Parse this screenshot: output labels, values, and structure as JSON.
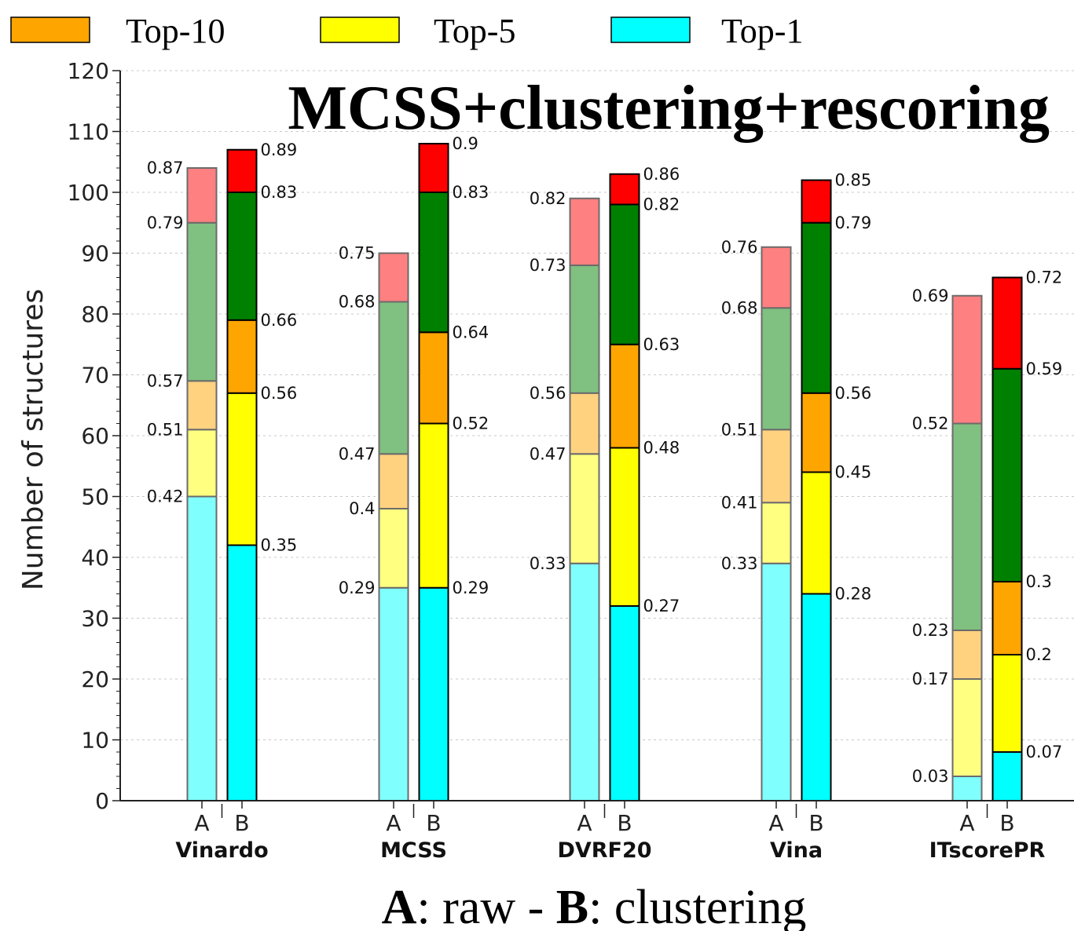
{
  "chart_data": {
    "type": "bar",
    "title": "MCSS+clustering+rescoring",
    "ylabel": "Number of structures",
    "xlabel": "",
    "ylim": [
      0,
      120
    ],
    "yticks": [
      0,
      10,
      20,
      30,
      40,
      50,
      60,
      70,
      80,
      90,
      100,
      110,
      120
    ],
    "grid": true,
    "stacked": true,
    "legend": {
      "placement": "top",
      "entries": [
        {
          "name": "Top-10",
          "color": "#ffa500"
        },
        {
          "name": "Top-5",
          "color": "#ffff00"
        },
        {
          "name": "Top-1",
          "color": "#00ffff"
        }
      ]
    },
    "footer": {
      "a_key": "A",
      "a_text": ": raw - ",
      "b_key": "B",
      "b_text": ": clustering"
    },
    "categories": [
      "Vinardo",
      "MCSS",
      "DVRF20",
      "Vina",
      "ITscorePR"
    ],
    "subcategories": [
      "A",
      "B"
    ],
    "segment_colors": {
      "A": {
        "top1": "#80ffff",
        "top5": "#ffff80",
        "top10": "#ffd280",
        "top50": "#80c080",
        "topall": "#ff8080"
      },
      "B": {
        "top1": "#00ffff",
        "top5": "#ffff00",
        "top10": "#ffa500",
        "top50": "#008000",
        "topall": "#ff0000"
      }
    },
    "groups": [
      {
        "category": "Vinardo",
        "A": {
          "tops": [
            50,
            61,
            69,
            95,
            104
          ],
          "labels": [
            "0.42",
            "0.51",
            "0.57",
            "0.79",
            "0.87"
          ]
        },
        "B": {
          "tops": [
            42,
            67,
            79,
            100,
            107
          ],
          "labels": [
            "0.35",
            "0.56",
            "0.66",
            "0.83",
            "0.89"
          ]
        }
      },
      {
        "category": "MCSS",
        "A": {
          "tops": [
            35,
            48,
            57,
            82,
            90
          ],
          "labels": [
            "0.29",
            "0.4",
            "0.47",
            "0.68",
            "0.75"
          ]
        },
        "B": {
          "tops": [
            35,
            62,
            77,
            100,
            108
          ],
          "labels": [
            "0.29",
            "0.52",
            "0.64",
            "0.83",
            "0.9"
          ]
        }
      },
      {
        "category": "DVRF20",
        "A": {
          "tops": [
            39,
            57,
            67,
            88,
            99
          ],
          "labels": [
            "0.33",
            "0.47",
            "0.56",
            "0.73",
            "0.82"
          ]
        },
        "B": {
          "tops": [
            32,
            58,
            75,
            98,
            103
          ],
          "labels": [
            "0.27",
            "0.48",
            "0.63",
            "0.82",
            "0.86"
          ]
        }
      },
      {
        "category": "Vina",
        "A": {
          "tops": [
            39,
            49,
            61,
            81,
            91
          ],
          "labels": [
            "0.33",
            "0.41",
            "0.51",
            "0.68",
            "0.76"
          ]
        },
        "B": {
          "tops": [
            34,
            54,
            67,
            95,
            102
          ],
          "labels": [
            "0.28",
            "0.45",
            "0.56",
            "0.79",
            "0.85"
          ]
        }
      },
      {
        "category": "ITscorePR",
        "A": {
          "tops": [
            4,
            20,
            28,
            62,
            83
          ],
          "labels": [
            "0.03",
            "0.17",
            "0.23",
            "0.52",
            "0.69"
          ]
        },
        "B": {
          "tops": [
            8,
            24,
            36,
            71,
            86
          ],
          "labels": [
            "0.07",
            "0.2",
            "0.3",
            "0.59",
            "0.72"
          ]
        }
      }
    ]
  }
}
